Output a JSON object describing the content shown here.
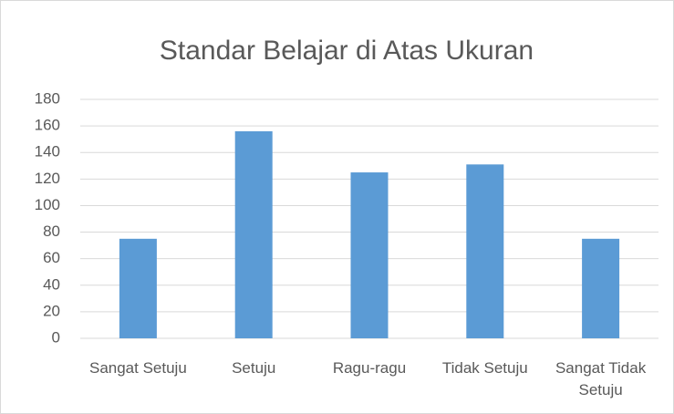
{
  "chart_data": {
    "type": "bar",
    "title": "Standar Belajar di Atas Ukuran",
    "categories": [
      "Sangat Setuju",
      "Setuju",
      "Ragu-ragu",
      "Tidak Setuju",
      "Sangat Tidak Setuju"
    ],
    "values": [
      75,
      156,
      125,
      131,
      75
    ],
    "color": "#5b9bd5",
    "ylim": [
      0,
      180
    ],
    "yticks": [
      0,
      20,
      40,
      60,
      80,
      100,
      120,
      140,
      160,
      180
    ],
    "grid": true
  }
}
